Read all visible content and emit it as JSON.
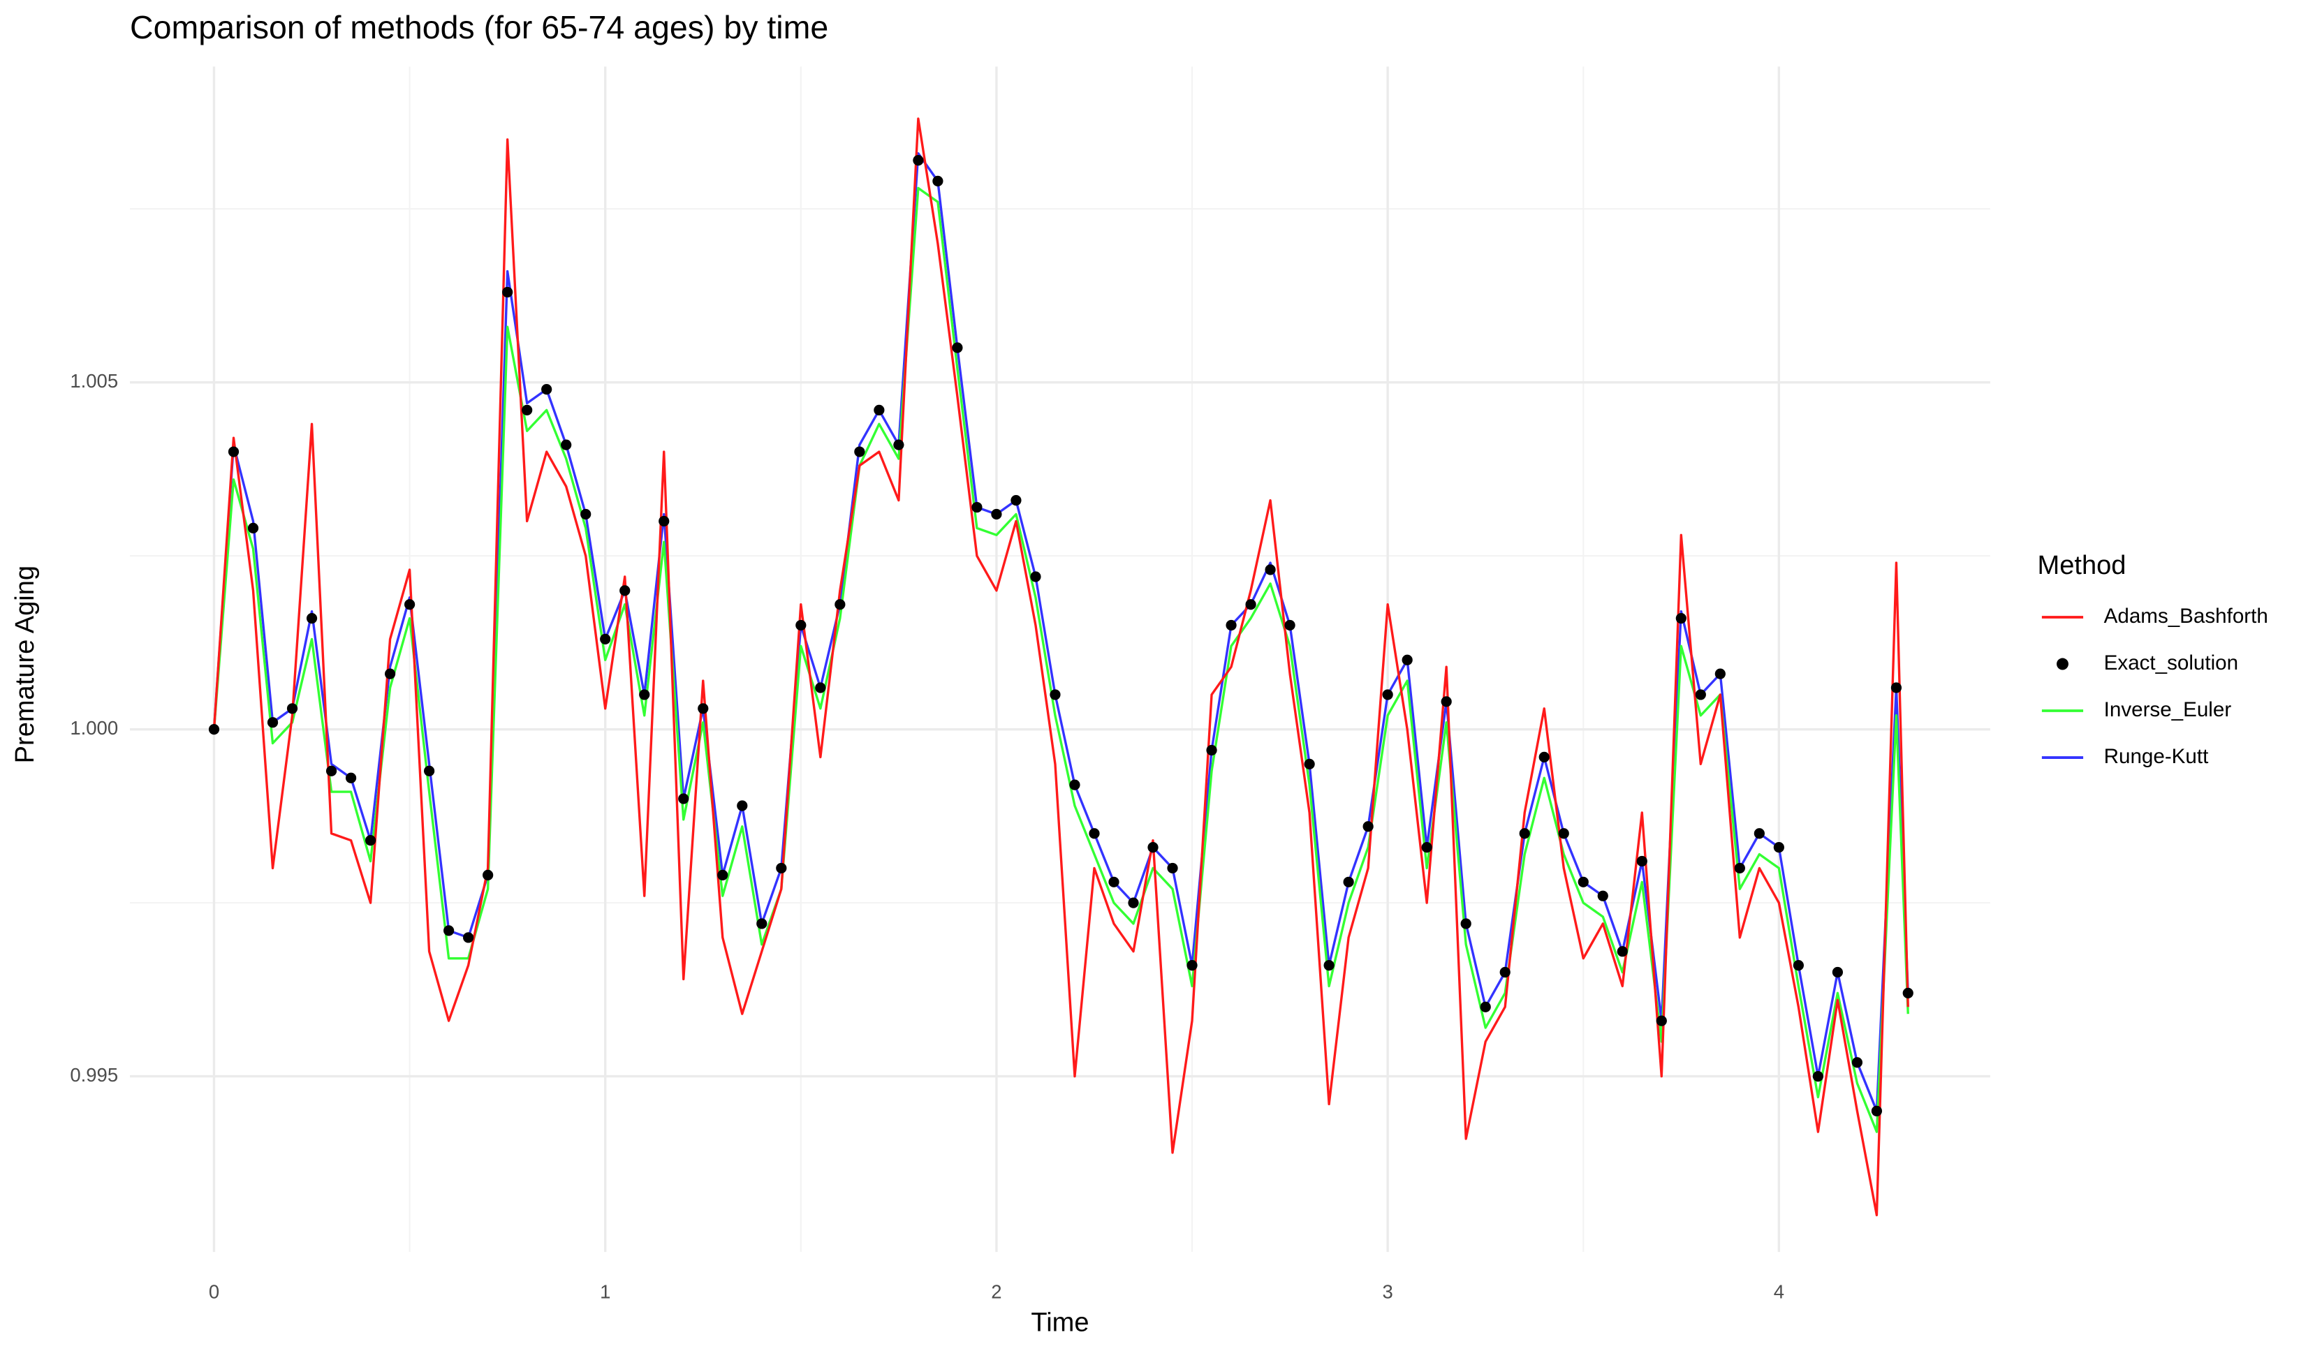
{
  "chart_data": {
    "type": "line",
    "title": "Comparison of methods (for 65-74 ages) by time",
    "x_label": "Time",
    "y_label": "Premature Aging",
    "legend_title": "Method",
    "legend": "right",
    "grid": true,
    "xlim": [
      -0.215,
      4.54
    ],
    "ylim": [
      0.99247,
      1.00955
    ],
    "xticks": [
      0,
      1,
      2,
      3,
      4
    ],
    "yticks": [
      0.995,
      {
        "value": 1,
        "label": "1.000"
      },
      1.005
    ],
    "minor_xticks": [
      0.5,
      1.5,
      2.5,
      3.5
    ],
    "minor_yticks": [
      0.9975,
      1.0025,
      1.0075
    ],
    "x": [
      0,
      0.05,
      0.1,
      0.15,
      0.2,
      0.25,
      0.3,
      0.35,
      0.4,
      0.45,
      0.5,
      0.55,
      0.6,
      0.65,
      0.7,
      0.75,
      0.8,
      0.85,
      0.9,
      0.95,
      1,
      1.05,
      1.1,
      1.15,
      1.2,
      1.25,
      1.3,
      1.35,
      1.4,
      1.45,
      1.5,
      1.55,
      1.6,
      1.65,
      1.7,
      1.75,
      1.8,
      1.85,
      1.9,
      1.95,
      2,
      2.05,
      2.1,
      2.15,
      2.2,
      2.25,
      2.3,
      2.35,
      2.4,
      2.45,
      2.5,
      2.55,
      2.6,
      2.65,
      2.7,
      2.75,
      2.8,
      2.85,
      2.9,
      2.95,
      3,
      3.05,
      3.1,
      3.15,
      3.2,
      3.25,
      3.3,
      3.35,
      3.4,
      3.45,
      3.5,
      3.55,
      3.6,
      3.65,
      3.7,
      3.75,
      3.8,
      3.85,
      3.9,
      3.95,
      4,
      4.05,
      4.1,
      4.15,
      4.2,
      4.25,
      4.3,
      4.33
    ],
    "series": [
      {
        "name": "Adams_Bashforth",
        "color": "#ff1a1a",
        "style": "line",
        "values": [
          1.0,
          1.0042,
          1.002,
          0.998,
          1.0002,
          1.0044,
          0.9985,
          0.9984,
          0.9975,
          1.0013,
          1.0023,
          0.9968,
          0.9958,
          0.9966,
          0.998,
          1.0085,
          1.003,
          1.004,
          1.0035,
          1.0025,
          1.0003,
          1.0022,
          0.9976,
          1.004,
          0.9964,
          1.0007,
          0.997,
          0.9959,
          0.9968,
          0.9977,
          1.0018,
          0.9996,
          1.002,
          1.0038,
          1.004,
          1.0033,
          1.0088,
          1.007,
          1.0048,
          1.0025,
          1.002,
          1.003,
          1.0015,
          0.9995,
          0.995,
          0.998,
          0.9972,
          0.9968,
          0.9984,
          0.9939,
          0.9958,
          1.0005,
          1.0009,
          1.002,
          1.0033,
          1.0008,
          0.9988,
          0.9946,
          0.997,
          0.998,
          1.0018,
          1.0,
          0.9975,
          1.0009,
          0.9941,
          0.9955,
          0.996,
          0.9988,
          1.0003,
          0.998,
          0.9967,
          0.9972,
          0.9963,
          0.9988,
          0.995,
          1.0028,
          0.9995,
          1.0005,
          0.997,
          0.998,
          0.9975,
          0.996,
          0.9942,
          0.9961,
          0.9945,
          0.993,
          1.0024,
          0.996
        ]
      },
      {
        "name": "Exact_solution",
        "color": "#000000",
        "style": "points",
        "values": [
          1.0,
          1.004,
          1.0029,
          1.0001,
          1.0003,
          1.0016,
          0.9994,
          0.9993,
          0.9984,
          1.0008,
          1.0018,
          0.9994,
          0.9971,
          0.997,
          0.9979,
          1.0063,
          1.0046,
          1.0049,
          1.0041,
          1.0031,
          1.0013,
          1.002,
          1.0005,
          1.003,
          0.999,
          1.0003,
          0.9979,
          0.9989,
          0.9972,
          0.998,
          1.0015,
          1.0006,
          1.0018,
          1.004,
          1.0046,
          1.0041,
          1.0082,
          1.0079,
          1.0055,
          1.0032,
          1.0031,
          1.0033,
          1.0022,
          1.0005,
          0.9992,
          0.9985,
          0.9978,
          0.9975,
          0.9983,
          0.998,
          0.9966,
          0.9997,
          1.0015,
          1.0018,
          1.0023,
          1.0015,
          0.9995,
          0.9966,
          0.9978,
          0.9986,
          1.0005,
          1.001,
          0.9983,
          1.0004,
          0.9972,
          0.996,
          0.9965,
          0.9985,
          0.9996,
          0.9985,
          0.9978,
          0.9976,
          0.9968,
          0.9981,
          0.9958,
          1.0016,
          1.0005,
          1.0008,
          0.998,
          0.9985,
          0.9983,
          0.9966,
          0.995,
          0.9965,
          0.9952,
          0.9945,
          1.0006,
          0.9962
        ]
      },
      {
        "name": "Inverse_Euler",
        "color": "#33ff33",
        "style": "line",
        "values": [
          1.0,
          1.0036,
          1.0026,
          0.9998,
          1.0001,
          1.0013,
          0.9991,
          0.9991,
          0.9981,
          1.0006,
          1.0016,
          0.9991,
          0.9967,
          0.9967,
          0.9977,
          1.0058,
          1.0043,
          1.0046,
          1.0039,
          1.0029,
          1.001,
          1.0018,
          1.0002,
          1.0027,
          0.9987,
          1.0001,
          0.9976,
          0.9986,
          0.9969,
          0.9977,
          1.0012,
          1.0003,
          1.0016,
          1.0038,
          1.0044,
          1.0039,
          1.0078,
          1.0076,
          1.0052,
          1.0029,
          1.0028,
          1.0031,
          1.0019,
          1.0002,
          0.9989,
          0.9982,
          0.9975,
          0.9972,
          0.998,
          0.9977,
          0.9963,
          0.9994,
          1.0012,
          1.0016,
          1.0021,
          1.0012,
          0.9992,
          0.9963,
          0.9975,
          0.9983,
          1.0002,
          1.0007,
          0.998,
          1.0001,
          0.9969,
          0.9957,
          0.9962,
          0.9982,
          0.9993,
          0.9982,
          0.9975,
          0.9973,
          0.9965,
          0.9978,
          0.9955,
          1.0012,
          1.0002,
          1.0005,
          0.9977,
          0.9982,
          0.998,
          0.9963,
          0.9947,
          0.9962,
          0.9949,
          0.9942,
          1.0002,
          0.9959
        ]
      },
      {
        "name": "Runge-Kutt",
        "color": "#3333ff",
        "style": "line",
        "values": [
          1.0,
          1.0041,
          1.003,
          1.0001,
          1.0003,
          1.0017,
          0.9995,
          0.9993,
          0.9984,
          1.0009,
          1.0019,
          0.9995,
          0.9971,
          0.997,
          0.9979,
          1.0066,
          1.0047,
          1.0049,
          1.0041,
          1.0031,
          1.0013,
          1.002,
          1.0005,
          1.0031,
          0.999,
          1.0003,
          0.9979,
          0.9989,
          0.9972,
          0.998,
          1.0015,
          1.0006,
          1.0018,
          1.0041,
          1.0046,
          1.0041,
          1.0083,
          1.0079,
          1.0055,
          1.0032,
          1.0031,
          1.0033,
          1.0022,
          1.0005,
          0.9992,
          0.9985,
          0.9978,
          0.9975,
          0.9983,
          0.998,
          0.9966,
          0.9997,
          1.0015,
          1.0018,
          1.0024,
          1.0015,
          0.9995,
          0.9966,
          0.9978,
          0.9986,
          1.0005,
          1.001,
          0.9983,
          1.0004,
          0.9972,
          0.996,
          0.9965,
          0.9985,
          0.9996,
          0.9985,
          0.9978,
          0.9976,
          0.9968,
          0.9981,
          0.9958,
          1.0017,
          1.0005,
          1.0008,
          0.998,
          0.9985,
          0.9983,
          0.9966,
          0.995,
          0.9965,
          0.9952,
          0.9945,
          1.0006,
          0.9962
        ]
      }
    ]
  }
}
